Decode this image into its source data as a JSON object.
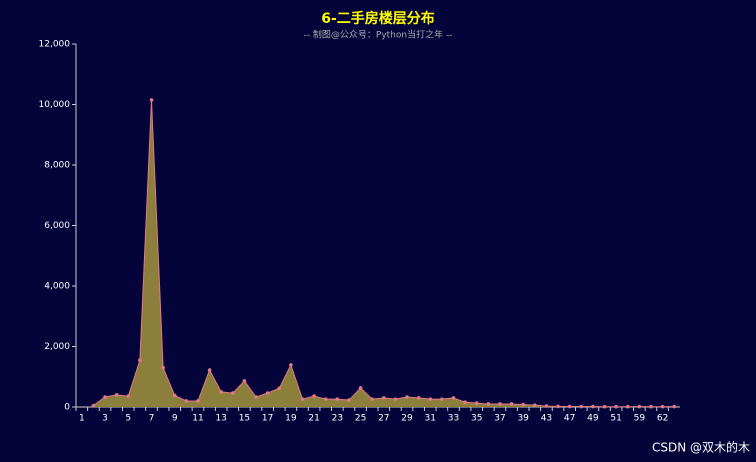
{
  "chart_data": {
    "type": "area",
    "title": "6-二手房楼层分布",
    "subtitle": "-- 制图@公众号：Python当打之年 --",
    "watermark": "CSDN @双木的木",
    "categories": [
      "1",
      null,
      "3",
      null,
      "5",
      null,
      "7",
      null,
      "9",
      null,
      "11",
      null,
      "13",
      null,
      "15",
      null,
      "17",
      null,
      "19",
      null,
      "21",
      null,
      "23",
      null,
      "25",
      null,
      "27",
      null,
      "29",
      null,
      "31",
      null,
      "33",
      null,
      "35",
      null,
      "37",
      null,
      "39",
      null,
      "43",
      null,
      "47",
      null,
      "49",
      null,
      "51",
      null,
      "59",
      null,
      "62",
      null
    ],
    "values": [
      null,
      50,
      330,
      400,
      360,
      1550,
      10150,
      1300,
      380,
      200,
      200,
      1220,
      500,
      460,
      860,
      330,
      460,
      620,
      1390,
      260,
      360,
      260,
      260,
      230,
      630,
      260,
      300,
      260,
      330,
      300,
      260,
      260,
      300,
      160,
      130,
      100,
      100,
      100,
      80,
      60,
      30,
      20,
      15,
      15,
      15,
      10,
      10,
      10,
      15,
      10,
      10,
      15
    ],
    "color": "#8c7f3c",
    "line_color": "#e07a86",
    "ylim": [
      0,
      12000
    ],
    "yticks": [
      0,
      {
        "value": 2000,
        "label": "2,000"
      },
      {
        "value": 4000,
        "label": "4,000"
      },
      {
        "value": 6000,
        "label": "6,000"
      },
      {
        "value": 8000,
        "label": "8,000"
      },
      {
        "value": 10000,
        "label": "10,000"
      },
      {
        "value": 12000,
        "label": "12,000"
      }
    ]
  }
}
